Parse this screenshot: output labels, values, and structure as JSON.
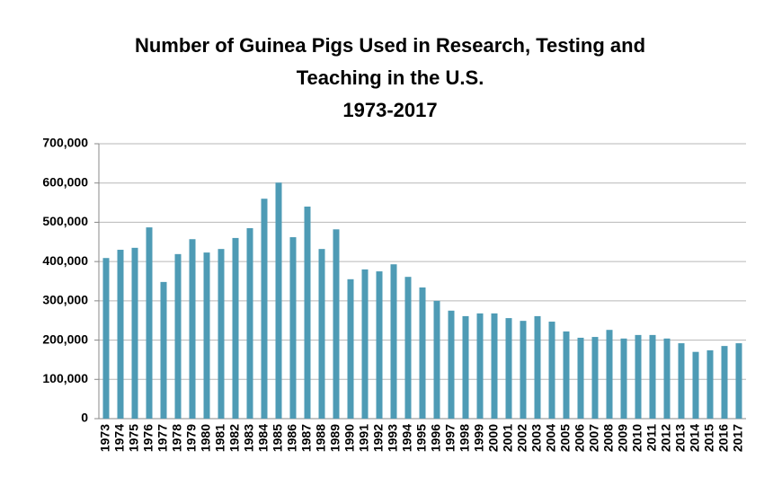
{
  "chart_data": {
    "type": "bar",
    "title": [
      "Number of Guinea Pigs Used in Research, Testing and",
      "Teaching in the U.S.",
      "1973-2017"
    ],
    "categories": [
      "1973",
      "1974",
      "1975",
      "1976",
      "1977",
      "1978",
      "1979",
      "1980",
      "1981",
      "1982",
      "1983",
      "1984",
      "1985",
      "1986",
      "1987",
      "1988",
      "1989",
      "1990",
      "1991",
      "1992",
      "1993",
      "1994",
      "1995",
      "1996",
      "1997",
      "1998",
      "1999",
      "2000",
      "2001",
      "2002",
      "2003",
      "2004",
      "2005",
      "2006",
      "2007",
      "2008",
      "2009",
      "2010",
      "2011",
      "2012",
      "2013",
      "2014",
      "2015",
      "2016",
      "2017"
    ],
    "values": [
      409000,
      430000,
      435000,
      487000,
      348000,
      419000,
      457000,
      423000,
      432000,
      460000,
      485000,
      560000,
      601000,
      462000,
      540000,
      432000,
      482000,
      355000,
      380000,
      375000,
      393000,
      361000,
      334000,
      300000,
      275000,
      261000,
      268000,
      268000,
      256000,
      249000,
      261000,
      247000,
      222000,
      206000,
      208000,
      226000,
      204000,
      213000,
      213000,
      204000,
      192000,
      170000,
      174000,
      185000,
      192000
    ],
    "color": "#4e9bb5",
    "ylim": [
      0,
      700000
    ],
    "yticks": [
      0,
      {
        "value": 100000,
        "label": "100,000"
      },
      {
        "value": 200000,
        "label": "200,000"
      },
      {
        "value": 300000,
        "label": "300,000"
      },
      {
        "value": 400000,
        "label": "400,000"
      },
      {
        "value": 500000,
        "label": "500,000"
      },
      {
        "value": 600000,
        "label": "600,000"
      },
      {
        "value": 700000,
        "label": "700,000"
      }
    ],
    "grid": true
  }
}
